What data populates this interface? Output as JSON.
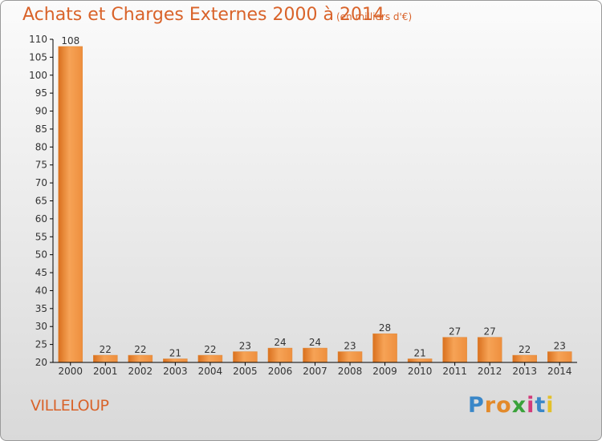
{
  "header": {
    "title": "Achats et Charges Externes 2000 à 2014",
    "unit": "(en milliers d'€)"
  },
  "footer": {
    "location": "VILLELOUP",
    "logo": "Proxiti"
  },
  "colors": {
    "title": "#d9632a",
    "bar_light": "#f6a356",
    "bar_dark": "#d9701e",
    "axis": "#000000",
    "text": "#333333"
  },
  "chart_data": {
    "type": "bar",
    "title": "Achats et Charges Externes 2000 à 2014",
    "xlabel": "",
    "ylabel": "",
    "categories": [
      "2000",
      "2001",
      "2002",
      "2003",
      "2004",
      "2005",
      "2006",
      "2007",
      "2008",
      "2009",
      "2010",
      "2011",
      "2012",
      "2013",
      "2014"
    ],
    "values": [
      108,
      22,
      22,
      21,
      22,
      23,
      24,
      24,
      23,
      28,
      21,
      27,
      27,
      22,
      23
    ],
    "ylim": [
      20,
      110
    ],
    "yticks": [
      20,
      25,
      30,
      35,
      40,
      45,
      50,
      55,
      60,
      65,
      70,
      75,
      80,
      85,
      90,
      95,
      100,
      105,
      110
    ],
    "grid": false,
    "legend": "none",
    "data_labels": true
  }
}
